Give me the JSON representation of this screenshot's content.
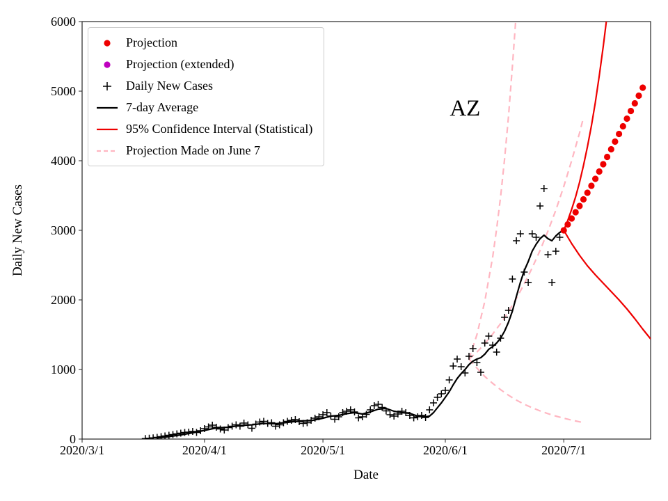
{
  "chart_data": {
    "type": "line",
    "title": "",
    "annotation": {
      "text": "AZ",
      "x_day": 97,
      "y_value": 4760
    },
    "xlabel": "Date",
    "ylabel": "Daily New Cases",
    "x_axis": {
      "unit": "days since 2020/3/1",
      "min": 0,
      "max": 144,
      "ticks": [
        0,
        31,
        61,
        92,
        122
      ],
      "tick_labels": [
        "2020/3/1",
        "2020/4/1",
        "2020/5/1",
        "2020/6/1",
        "2020/7/1"
      ]
    },
    "y_axis": {
      "min": 0,
      "max": 6000,
      "ticks": [
        0,
        1000,
        2000,
        3000,
        4000,
        5000,
        6000
      ]
    },
    "colors": {
      "projection": "#ee0000",
      "projection_extended": "#bf00bf",
      "daily_cases": "#000000",
      "average": "#000000",
      "confidence_interval": "#ee0000",
      "june7_projection": "#ffb6c1"
    },
    "legend": {
      "position": "upper-left",
      "items": [
        {
          "label": "Projection",
          "marker": "dot",
          "color": "#ee0000"
        },
        {
          "label": "Projection (extended)",
          "marker": "dot",
          "color": "#bf00bf"
        },
        {
          "label": "Daily New Cases",
          "marker": "plus",
          "color": "#000000"
        },
        {
          "label": "7-day Average",
          "marker": "line",
          "color": "#000000"
        },
        {
          "label": "95% Confidence Interval (Statistical)",
          "marker": "line",
          "color": "#ee0000"
        },
        {
          "label": "Projection Made on June 7",
          "marker": "dashed-line",
          "color": "#ffb6c1"
        }
      ]
    },
    "series": [
      {
        "name": "Projection Made on June 7",
        "type": "line",
        "style": "dashed",
        "color": "#ffb6c1",
        "width": 2.2,
        "segments": [
          [
            [
              98,
              1150
            ],
            [
              100,
              1500
            ],
            [
              102,
              1980
            ],
            [
              104,
              2620
            ],
            [
              105,
              3020
            ],
            [
              106,
              3480
            ],
            [
              107,
              4020
            ],
            [
              108,
              4640
            ],
            [
              109,
              5360
            ],
            [
              110,
              6150
            ]
          ],
          [
            [
              98,
              1150
            ],
            [
              100,
              1250
            ],
            [
              102,
              1370
            ],
            [
              104,
              1510
            ],
            [
              106,
              1660
            ],
            [
              108,
              1830
            ],
            [
              110,
              2020
            ],
            [
              112,
              2230
            ],
            [
              114,
              2460
            ],
            [
              116,
              2710
            ],
            [
              118,
              2990
            ],
            [
              120,
              3290
            ],
            [
              122,
              3630
            ],
            [
              124,
              4000
            ],
            [
              126,
              4400
            ],
            [
              127,
              4620
            ]
          ],
          [
            [
              98,
              1150
            ],
            [
              100,
              1020
            ],
            [
              102,
              900
            ],
            [
              104,
              800
            ],
            [
              106,
              710
            ],
            [
              108,
              630
            ],
            [
              110,
              560
            ],
            [
              112,
              500
            ],
            [
              114,
              450
            ],
            [
              116,
              405
            ],
            [
              118,
              365
            ],
            [
              120,
              330
            ],
            [
              122,
              300
            ],
            [
              124,
              272
            ],
            [
              126,
              248
            ],
            [
              127,
              238
            ]
          ]
        ]
      },
      {
        "name": "7-day Average",
        "type": "line",
        "style": "solid",
        "color": "#000000",
        "width": 2.2,
        "segments": [
          [
            [
              19,
              15
            ],
            [
              22,
              35
            ],
            [
              25,
              60
            ],
            [
              28,
              90
            ],
            [
              31,
              125
            ],
            [
              34,
              160
            ],
            [
              37,
              170
            ],
            [
              40,
              195
            ],
            [
              43,
              205
            ],
            [
              46,
              225
            ],
            [
              49,
              220
            ],
            [
              52,
              240
            ],
            [
              55,
              260
            ],
            [
              58,
              265
            ],
            [
              61,
              300
            ],
            [
              63,
              330
            ],
            [
              65,
              340
            ],
            [
              67,
              365
            ],
            [
              69,
              380
            ],
            [
              71,
              360
            ],
            [
              73,
              390
            ],
            [
              75,
              430
            ],
            [
              77,
              440
            ],
            [
              79,
              400
            ],
            [
              81,
              380
            ],
            [
              83,
              370
            ],
            [
              85,
              330
            ],
            [
              87,
              320
            ],
            [
              88,
              330
            ],
            [
              89,
              380
            ],
            [
              90,
              450
            ],
            [
              91,
              520
            ],
            [
              92,
              600
            ],
            [
              93,
              680
            ],
            [
              94,
              780
            ],
            [
              95,
              870
            ],
            [
              96,
              940
            ],
            [
              97,
              1000
            ],
            [
              98,
              1070
            ],
            [
              99,
              1120
            ],
            [
              100,
              1150
            ],
            [
              101,
              1170
            ],
            [
              102,
              1220
            ],
            [
              103,
              1290
            ],
            [
              104,
              1330
            ],
            [
              105,
              1380
            ],
            [
              106,
              1450
            ],
            [
              107,
              1550
            ],
            [
              108,
              1680
            ],
            [
              109,
              1840
            ],
            [
              110,
              2050
            ],
            [
              111,
              2250
            ],
            [
              112,
              2420
            ],
            [
              113,
              2550
            ],
            [
              114,
              2700
            ],
            [
              115,
              2800
            ],
            [
              116,
              2880
            ],
            [
              117,
              2930
            ],
            [
              118,
              2880
            ],
            [
              119,
              2850
            ],
            [
              120,
              2920
            ],
            [
              121,
              2970
            ],
            [
              122,
              3000
            ]
          ]
        ]
      },
      {
        "name": "Daily New Cases",
        "type": "scatter",
        "marker": "plus",
        "color": "#000000",
        "points": [
          [
            16,
            8
          ],
          [
            17,
            12
          ],
          [
            18,
            18
          ],
          [
            19,
            25
          ],
          [
            20,
            35
          ],
          [
            21,
            45
          ],
          [
            22,
            55
          ],
          [
            23,
            65
          ],
          [
            24,
            75
          ],
          [
            25,
            85
          ],
          [
            26,
            95
          ],
          [
            27,
            100
          ],
          [
            28,
            110
          ],
          [
            29,
            95
          ],
          [
            30,
            120
          ],
          [
            31,
            150
          ],
          [
            32,
            175
          ],
          [
            33,
            200
          ],
          [
            34,
            170
          ],
          [
            35,
            145
          ],
          [
            36,
            130
          ],
          [
            37,
            165
          ],
          [
            38,
            185
          ],
          [
            39,
            205
          ],
          [
            40,
            185
          ],
          [
            41,
            230
          ],
          [
            42,
            205
          ],
          [
            43,
            155
          ],
          [
            44,
            215
          ],
          [
            45,
            245
          ],
          [
            46,
            255
          ],
          [
            47,
            225
          ],
          [
            48,
            235
          ],
          [
            49,
            185
          ],
          [
            50,
            205
          ],
          [
            51,
            235
          ],
          [
            52,
            255
          ],
          [
            53,
            270
          ],
          [
            54,
            280
          ],
          [
            55,
            250
          ],
          [
            56,
            225
          ],
          [
            57,
            235
          ],
          [
            58,
            270
          ],
          [
            59,
            300
          ],
          [
            60,
            320
          ],
          [
            61,
            350
          ],
          [
            62,
            380
          ],
          [
            63,
            330
          ],
          [
            64,
            285
          ],
          [
            65,
            320
          ],
          [
            66,
            380
          ],
          [
            67,
            400
          ],
          [
            68,
            420
          ],
          [
            69,
            390
          ],
          [
            70,
            305
          ],
          [
            71,
            320
          ],
          [
            72,
            355
          ],
          [
            73,
            420
          ],
          [
            74,
            480
          ],
          [
            75,
            500
          ],
          [
            76,
            455
          ],
          [
            77,
            405
          ],
          [
            78,
            350
          ],
          [
            79,
            330
          ],
          [
            80,
            360
          ],
          [
            81,
            400
          ],
          [
            82,
            380
          ],
          [
            83,
            340
          ],
          [
            84,
            305
          ],
          [
            85,
            320
          ],
          [
            86,
            340
          ],
          [
            87,
            310
          ],
          [
            88,
            420
          ],
          [
            89,
            520
          ],
          [
            90,
            600
          ],
          [
            91,
            650
          ],
          [
            92,
            700
          ],
          [
            93,
            850
          ],
          [
            94,
            1050
          ],
          [
            95,
            1150
          ],
          [
            96,
            1040
          ],
          [
            97,
            950
          ],
          [
            98,
            1190
          ],
          [
            99,
            1300
          ],
          [
            100,
            1100
          ],
          [
            101,
            960
          ],
          [
            102,
            1380
          ],
          [
            103,
            1480
          ],
          [
            104,
            1350
          ],
          [
            105,
            1250
          ],
          [
            106,
            1450
          ],
          [
            107,
            1750
          ],
          [
            108,
            1850
          ],
          [
            109,
            2300
          ],
          [
            110,
            2850
          ],
          [
            111,
            2950
          ],
          [
            112,
            2400
          ],
          [
            113,
            2250
          ],
          [
            114,
            2950
          ],
          [
            115,
            2900
          ],
          [
            116,
            3350
          ],
          [
            117,
            3600
          ],
          [
            118,
            2650
          ],
          [
            119,
            2250
          ],
          [
            120,
            2700
          ],
          [
            121,
            2900
          ]
        ]
      },
      {
        "name": "95% Confidence Interval (Statistical)",
        "type": "line",
        "style": "solid",
        "color": "#ee0000",
        "width": 2.2,
        "segments": [
          [
            [
              122,
              3000
            ],
            [
              123,
              3140
            ],
            [
              124,
              3300
            ],
            [
              125,
              3480
            ],
            [
              126,
              3690
            ],
            [
              127,
              3930
            ],
            [
              128,
              4200
            ],
            [
              129,
              4500
            ],
            [
              130,
              4840
            ],
            [
              131,
              5220
            ],
            [
              132,
              5640
            ],
            [
              133,
              6100
            ]
          ],
          [
            [
              122,
              3000
            ],
            [
              124,
              2810
            ],
            [
              126,
              2640
            ],
            [
              128,
              2490
            ],
            [
              130,
              2360
            ],
            [
              132,
              2240
            ],
            [
              134,
              2120
            ],
            [
              136,
              2000
            ],
            [
              138,
              1870
            ],
            [
              140,
              1730
            ],
            [
              142,
              1580
            ],
            [
              144,
              1440
            ]
          ]
        ]
      },
      {
        "name": "Projection",
        "type": "scatter",
        "marker": "dot",
        "color": "#ee0000",
        "points": [
          [
            122,
            3000
          ],
          [
            123,
            3085
          ],
          [
            124,
            3170
          ],
          [
            125,
            3260
          ],
          [
            126,
            3350
          ],
          [
            127,
            3445
          ],
          [
            128,
            3540
          ],
          [
            129,
            3640
          ],
          [
            130,
            3740
          ],
          [
            131,
            3845
          ],
          [
            132,
            3950
          ],
          [
            133,
            4055
          ],
          [
            134,
            4165
          ],
          [
            135,
            4275
          ],
          [
            136,
            4385
          ],
          [
            137,
            4495
          ],
          [
            138,
            4605
          ],
          [
            139,
            4715
          ],
          [
            140,
            4825
          ],
          [
            141,
            4935
          ],
          [
            142,
            5050
          ]
        ]
      },
      {
        "name": "Projection (extended)",
        "type": "scatter",
        "marker": "dot",
        "color": "#bf00bf",
        "points": []
      }
    ]
  }
}
